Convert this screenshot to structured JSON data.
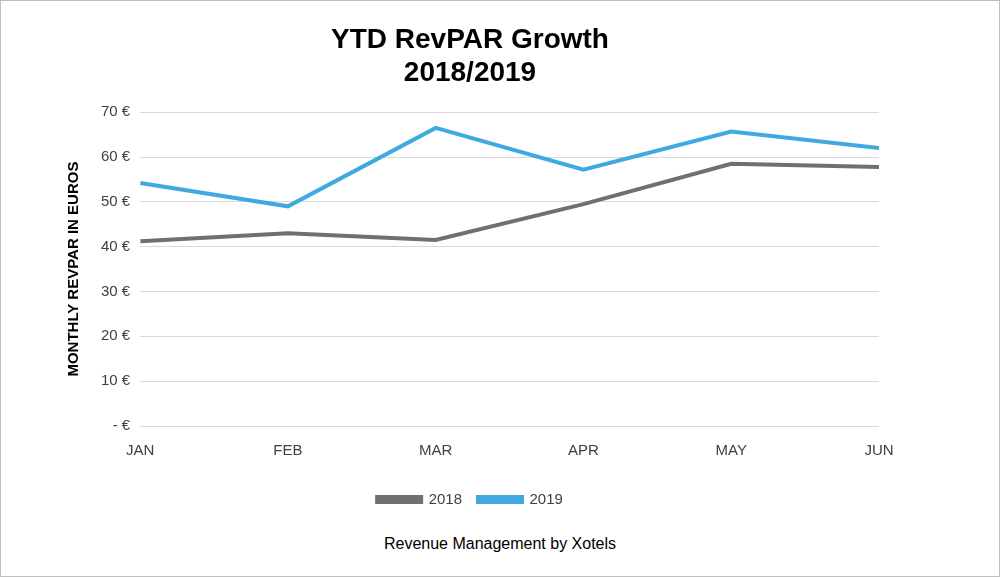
{
  "chart_data": {
    "type": "line",
    "title": "YTD RevPAR Growth",
    "subtitle": "2018/2019",
    "y_label": "MONTHLY REVPAR IN EUROS",
    "footer": "Revenue Management by Xotels",
    "categories": [
      "JAN",
      "FEB",
      "MAR",
      "APR",
      "MAY",
      "JUN"
    ],
    "series": [
      {
        "name": "2018",
        "color": "#707070",
        "values": [
          41.2,
          43.0,
          41.5,
          49.5,
          58.5,
          57.8
        ]
      },
      {
        "name": "2019",
        "color": "#3fa9e0",
        "values": [
          54.2,
          49.0,
          66.5,
          57.2,
          65.7,
          62.0
        ]
      }
    ],
    "ylim": [
      0,
      70
    ],
    "yticks": [
      {
        "value": 0,
        "label": "- €"
      },
      {
        "value": 10,
        "label": "10 €"
      },
      {
        "value": 20,
        "label": "20 €"
      },
      {
        "value": 30,
        "label": "30 €"
      },
      {
        "value": 40,
        "label": "40 €"
      },
      {
        "value": 50,
        "label": "50 €"
      },
      {
        "value": 60,
        "label": "60 €"
      },
      {
        "value": 70,
        "label": "70 €"
      }
    ],
    "grid": true,
    "legend": "bottom"
  }
}
